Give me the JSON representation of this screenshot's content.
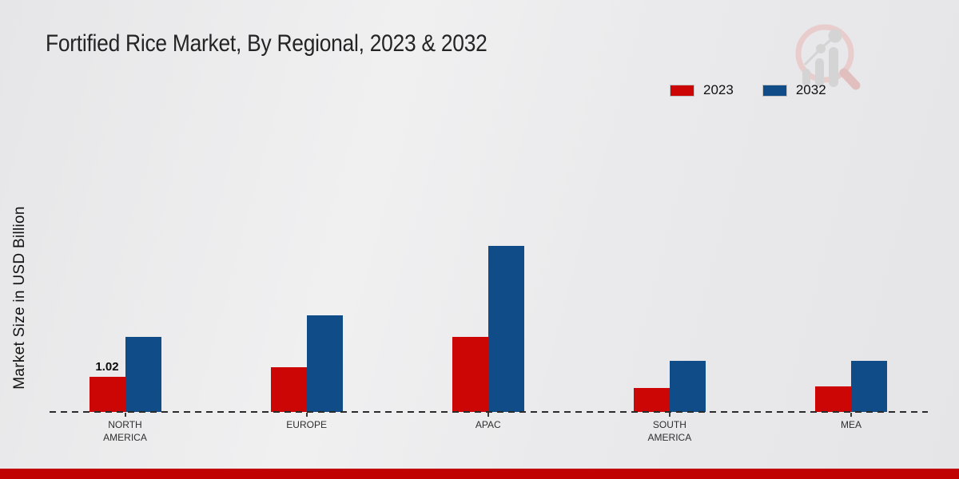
{
  "title": "Fortified Rice Market, By Regional, 2023 & 2032",
  "chart_data": {
    "type": "bar",
    "title": "Fortified Rice Market, By Regional, 2023 & 2032",
    "xlabel": "",
    "ylabel": "Market Size in USD Billion",
    "categories": [
      "NORTH AMERICA",
      "EUROPE",
      "APAC",
      "SOUTH AMERICA",
      "MEA"
    ],
    "series": [
      {
        "name": "2023",
        "color": "#cc0505",
        "values": [
          1.02,
          1.3,
          2.18,
          0.7,
          0.74
        ]
      },
      {
        "name": "2032",
        "color": "#104c87",
        "values": [
          2.18,
          2.81,
          4.83,
          1.48,
          1.48
        ]
      }
    ],
    "data_labels": [
      {
        "category_index": 0,
        "series_index": 0,
        "text": "1.02"
      }
    ],
    "ylim": [
      0,
      5
    ],
    "grid": false,
    "axis_style": "dashed-baseline-only",
    "legend_position": "top-right"
  },
  "colors": {
    "series_2023": "#cc0505",
    "series_2032": "#104c87",
    "footer_bar": "#c10202",
    "background": "#eaeaec",
    "baseline": "#2b2b2b"
  },
  "watermark": {
    "icon": "magnifier-bar-chart-logo"
  }
}
